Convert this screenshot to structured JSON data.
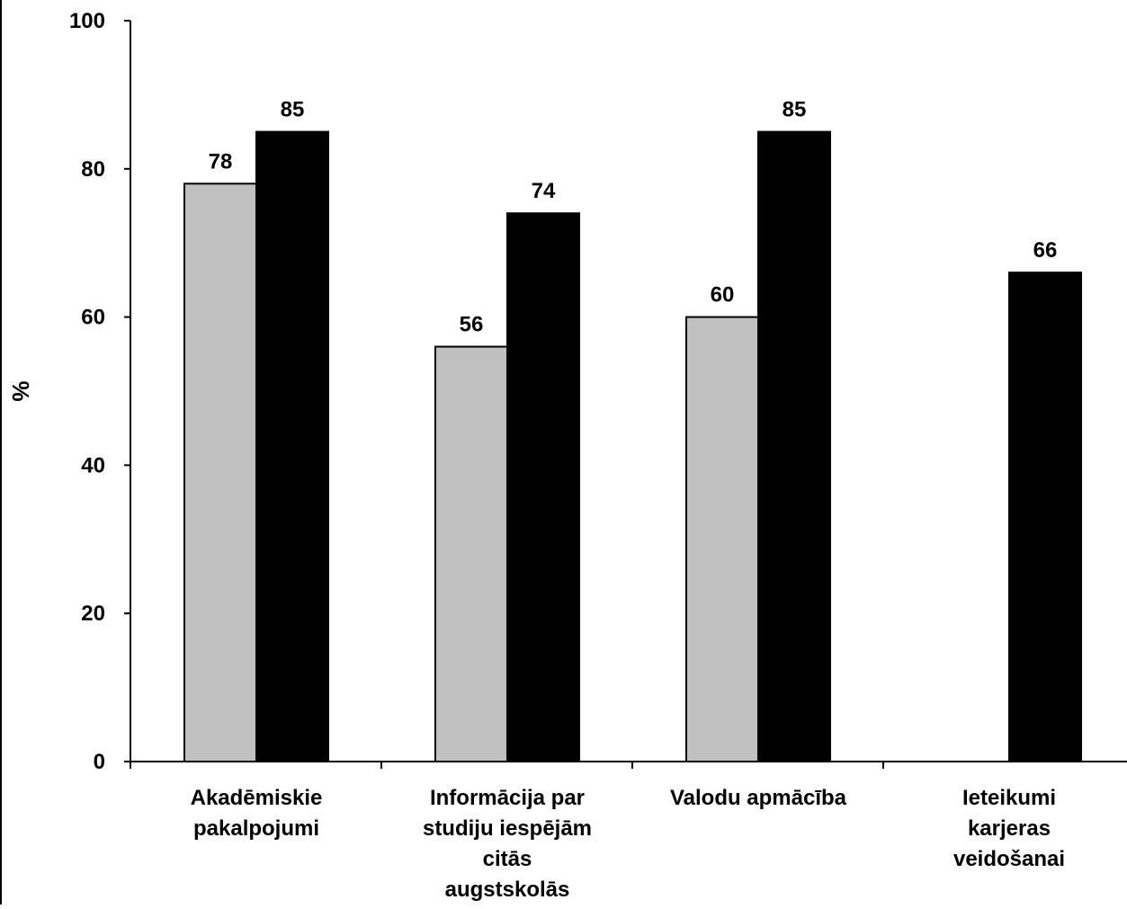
{
  "chart_data": {
    "type": "bar",
    "title": "",
    "xlabel": "",
    "ylabel": "%",
    "ylim": [
      0,
      100
    ],
    "yticks": [
      0,
      20,
      40,
      60,
      80,
      100
    ],
    "grid": false,
    "legend": "none",
    "categories": [
      [
        "Akadēmiskie",
        "pakalpojumi"
      ],
      [
        "Informācija par",
        "studiju iespējām",
        "citās",
        "augstskolās"
      ],
      [
        "Valodu apmācība"
      ],
      [
        "Ieteikumi",
        "karjeras",
        "veidošanai"
      ]
    ],
    "series": [
      {
        "color": "#c0c0c0",
        "values": [
          78,
          56,
          60,
          null
        ]
      },
      {
        "color": "#000000",
        "values": [
          85,
          74,
          85,
          66
        ]
      }
    ],
    "data_labels": true
  }
}
